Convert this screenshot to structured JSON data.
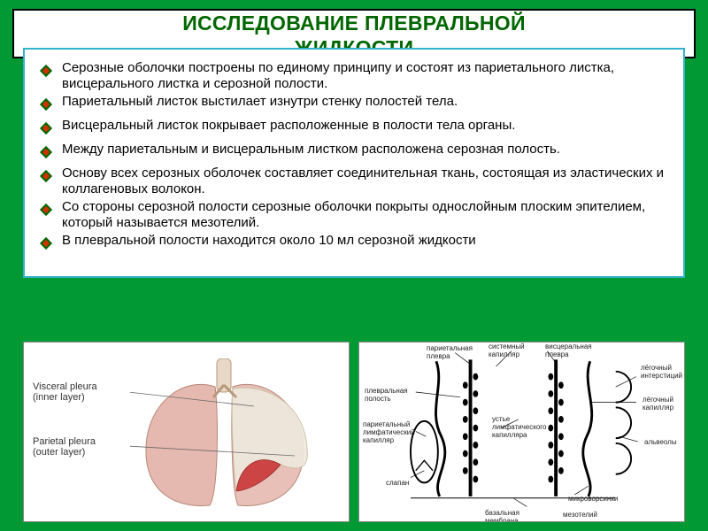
{
  "title_line1": "ИССЛЕДОВАНИЕ ПЛЕВРАЛЬНОЙ",
  "title_line2": "ЖИДКОСТИ",
  "bullets": [
    "Серозные оболочки построены по единому принципу и состоят из париетального листка, висцерального листка и серозной полости.",
    "Париетальный листок выстилает изнутри стенку полостей тела.",
    "Висцеральный листок покрывает расположенные в полости тела органы.",
    "Между париетальным и висцеральным листком расположена серозная полость.",
    "Основу всех серозных оболочек составляет соединительная ткань, состоящая из эластических и коллагеновых волокон.",
    "Со стороны серозной полости серозные оболочки покрыты однослойным плоским эпителием, который называется мезотелий."
  ],
  "partial_line": "В плевральной полости находится около 10 мл серозной жидкости",
  "bullet_color": "#006600",
  "bullet_accent": "#cc3300",
  "left_image": {
    "vp_label_l1": "Visceral pleura",
    "vp_label_l2": "(inner layer)",
    "pp_label_l1": "Parietal pleura",
    "pp_label_l2": "(outer layer)",
    "lung_left_color": "#e5b8b0",
    "lung_right_color": "#e8c0b8",
    "cut_color": "#c44",
    "membrane_color": "#e8e2d8"
  },
  "right_image": {
    "labels": {
      "par_plevra": "париетальная\nплевра",
      "vis_plevra": "висцеральная\nплевра",
      "sist_kap": "системный\nкапилляр",
      "leg_inter": "лёгочный\nинтерстиций",
      "plevr_pol": "плевральная\nполость",
      "leg_kap": "лёгочный\nкапилляр",
      "par_lymph": "париетальный\nлимфатический\nкапилляр",
      "ustye": "устье\nлимфатического\nкапилляра",
      "alveoly": "альвеолы",
      "slapan": "слапан",
      "mikrov": "микроворсинки",
      "baz_mem": "базальная\nмембрана",
      "mezotel": "мезотелий"
    },
    "line_color": "#000",
    "cell_color": "#000",
    "alveol_color": "#fff"
  }
}
